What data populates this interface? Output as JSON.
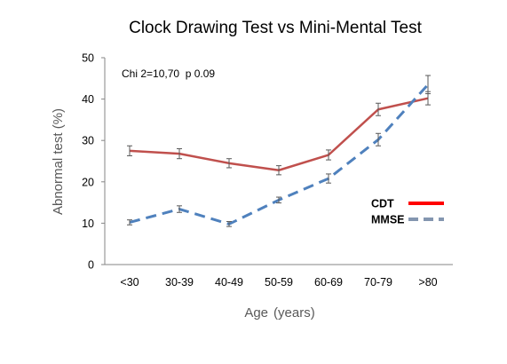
{
  "chart_data": {
    "type": "line",
    "title": "Clock Drawing Test vs Mini-Mental Test",
    "xlabel": "Age",
    "xlabel_unit": "(years)",
    "ylabel": "Abnormal test (%)",
    "categories": [
      "<30",
      "30-39",
      "40-49",
      "50-59",
      "60-69",
      "70-79",
      ">80"
    ],
    "ylim": [
      0,
      50
    ],
    "yticks": [
      "0",
      "10",
      "20",
      "30",
      "40",
      "50"
    ],
    "grid": false,
    "legend_position": "right",
    "annotation": "Chi 2=10,70  p 0.09",
    "series": [
      {
        "name": "CDT",
        "values": [
          27.5,
          26.8,
          24.5,
          22.8,
          26.5,
          37.5,
          40.2
        ],
        "errors": [
          1.2,
          1.2,
          1.1,
          1.1,
          1.2,
          1.5,
          1.6
        ],
        "color": "#c0504d",
        "legend_color": "#ff0000",
        "style": "solid"
      },
      {
        "name": "MMSE",
        "values": [
          10.2,
          13.4,
          9.8,
          15.6,
          20.8,
          30.2,
          43.5
        ],
        "errors": [
          0.6,
          0.8,
          0.6,
          0.7,
          1.1,
          1.5,
          2.2
        ],
        "color": "#4f81bd",
        "legend_color": "#8496b0",
        "style": "dashed"
      }
    ]
  }
}
